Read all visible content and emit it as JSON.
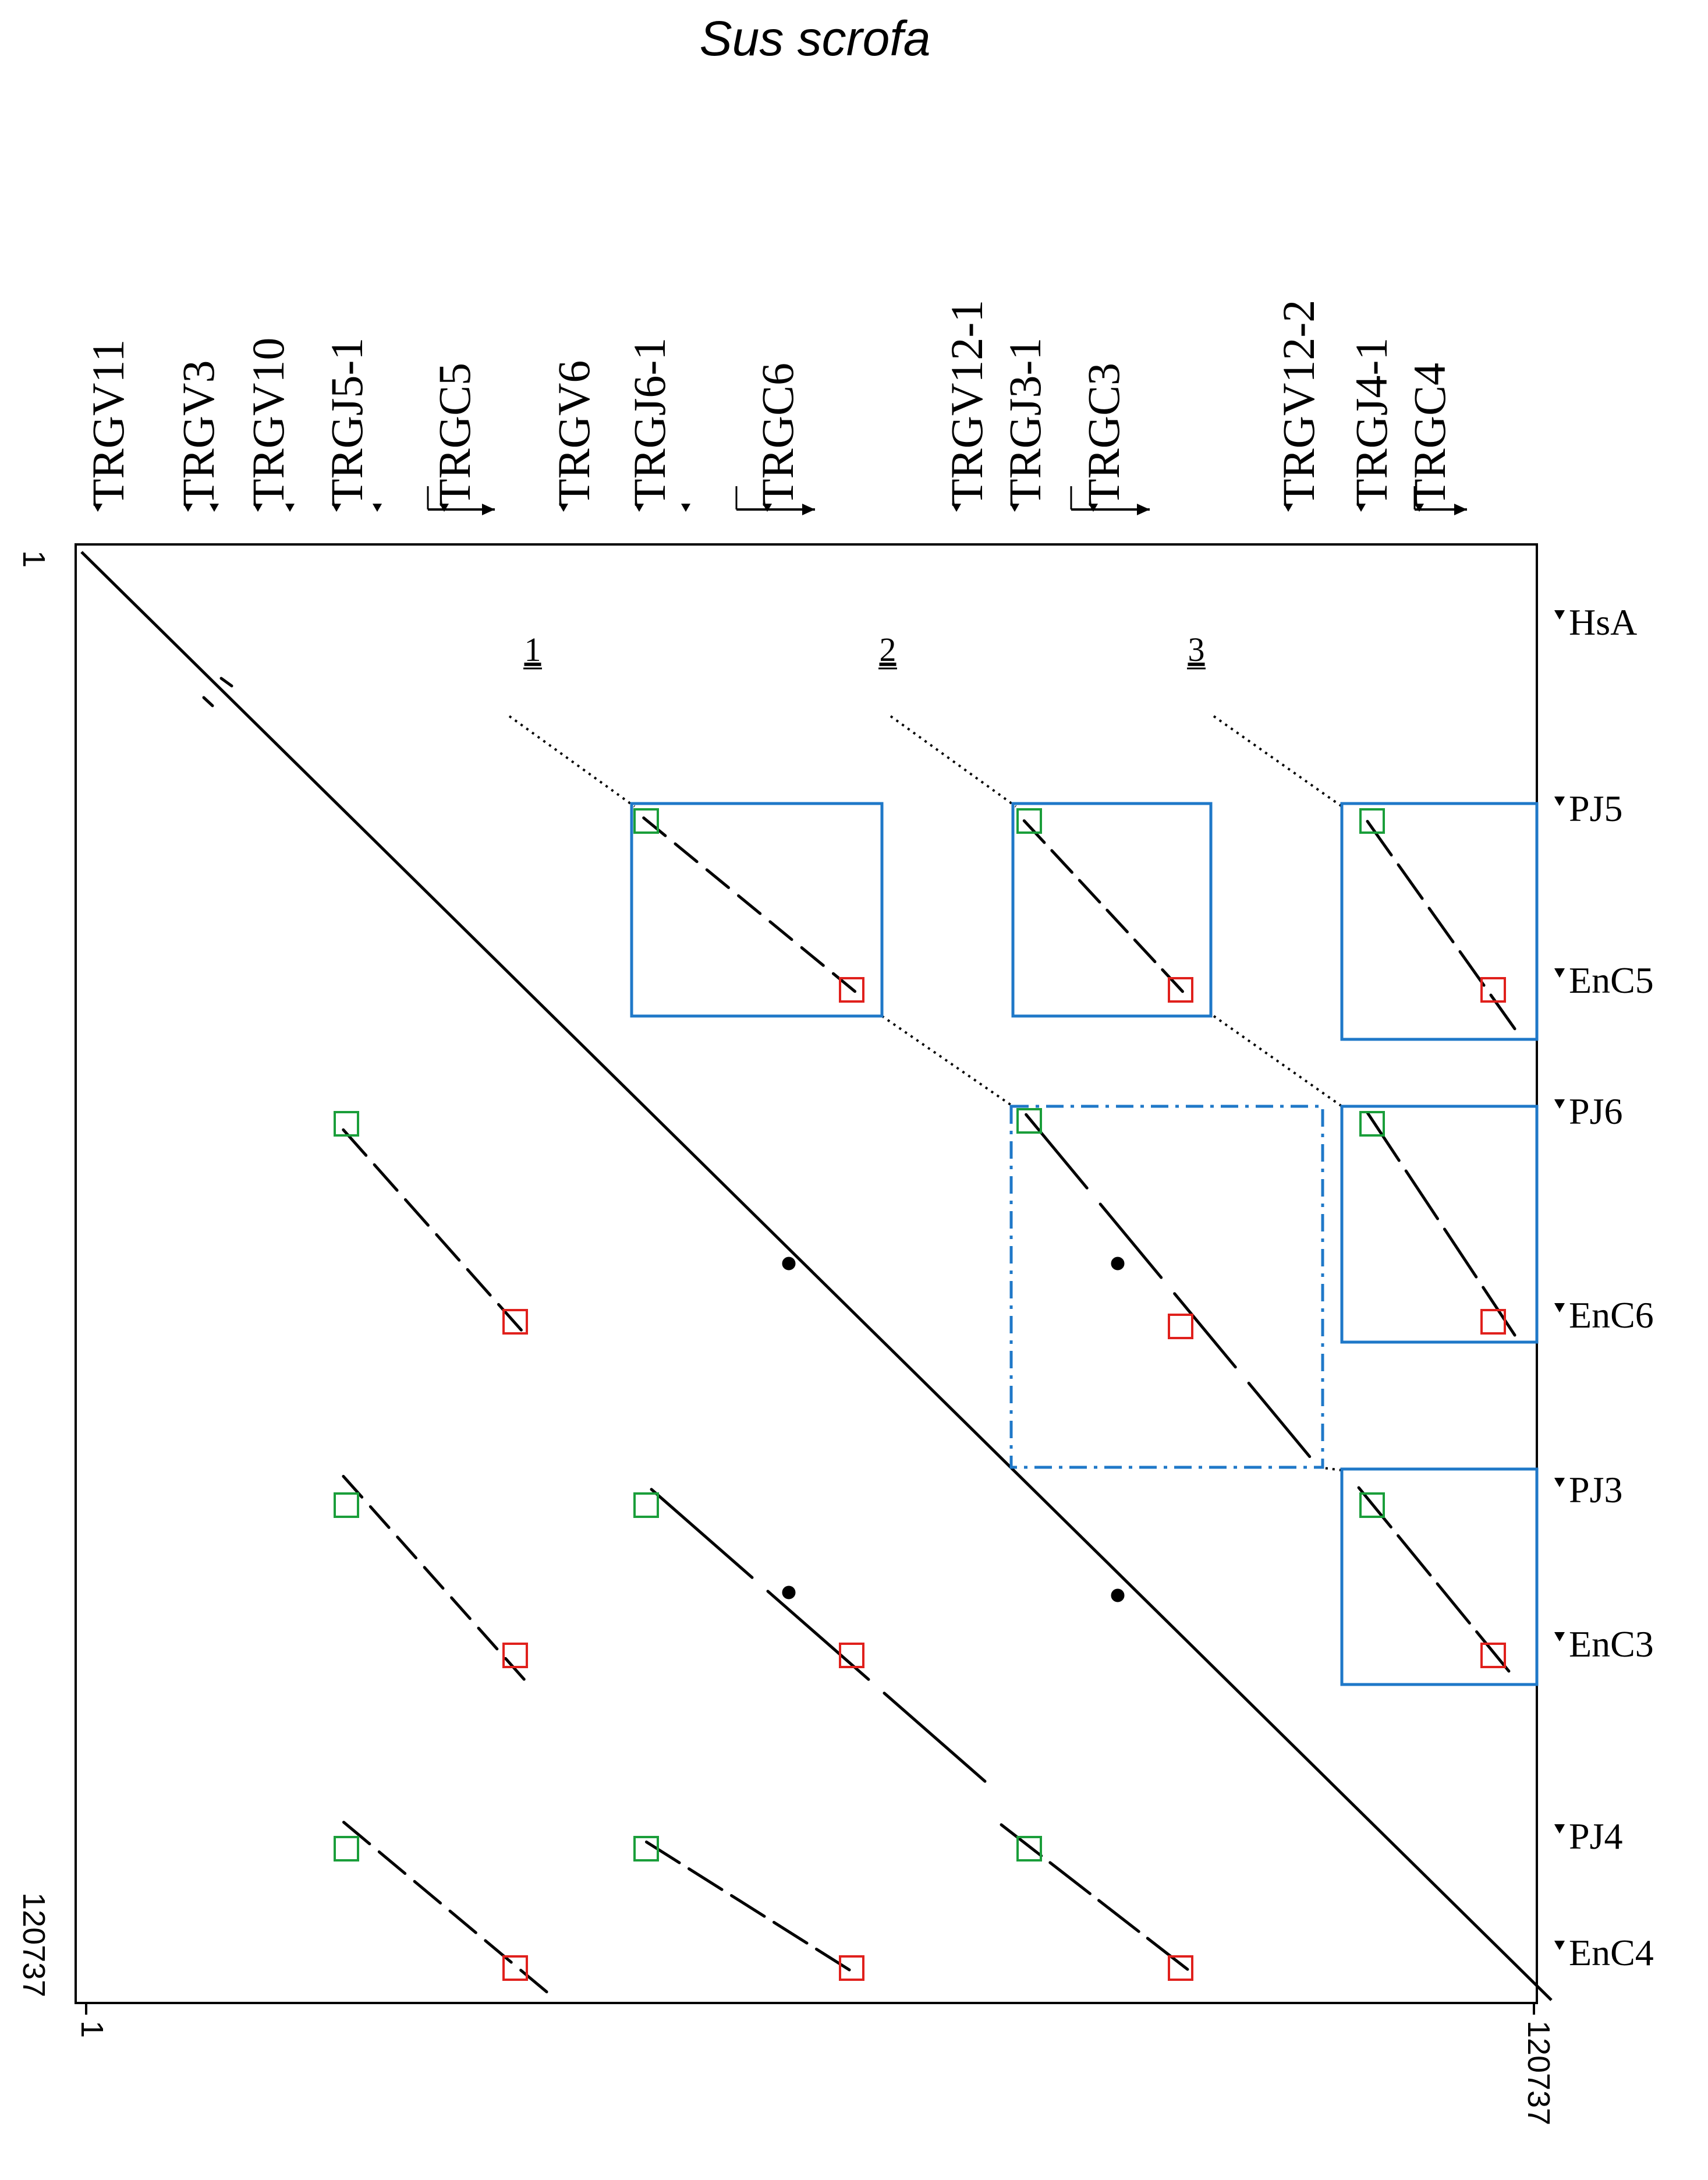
{
  "title": "Sus scrofa",
  "axis": {
    "x_start": "1",
    "x_end": "120737",
    "y_start": "1",
    "y_end": "120737"
  },
  "top_genes": [
    "TRGV11",
    "TRGV3",
    "TRGV10",
    "TRGJ5-1",
    "TRGC5",
    "TRGV6",
    "TRGJ6-1",
    "TRGC6",
    "TRGV12-1",
    "TRGJ3-1",
    "TRGC3",
    "TRGV12-2",
    "TRGJ4-1",
    "TRGC4"
  ],
  "right_labels": [
    "HsA",
    "PJ5",
    "EnC5",
    "PJ6",
    "EnC6",
    "PJ3",
    "EnC3",
    "PJ4",
    "EnC4"
  ],
  "regions": [
    "1",
    "2",
    "3"
  ],
  "colors": {
    "diagonal": "#000000",
    "box": "#1f78c8",
    "start_marker": "#1a9e3a",
    "end_marker": "#e0201c"
  },
  "marker_icons": [
    "triangle-marker-icon",
    "arrow-icon"
  ]
}
